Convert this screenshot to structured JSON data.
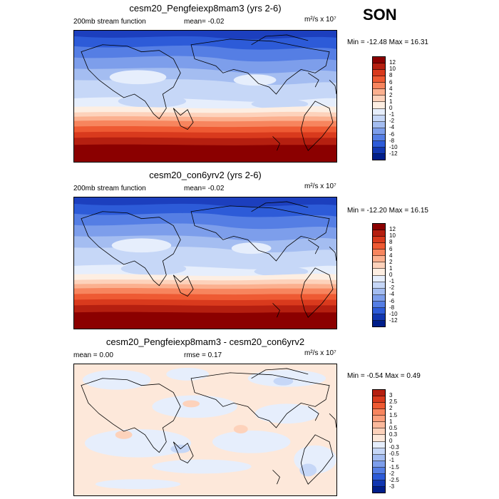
{
  "season": "SON",
  "panels": [
    {
      "title": "cesm20_Pengfeiexp8mam3 (yrs 2-6)",
      "left_text": "200mb stream function",
      "mid_text": "mean=  -0.02",
      "units": "m²/s x 10⁷",
      "minmax": "Min = -12.48 Max =  16.31",
      "colorbar": {
        "labels": [
          "12",
          "10",
          "8",
          "6",
          "4",
          "2",
          "1",
          "0",
          "-1",
          "-2",
          "-4",
          "-6",
          "-8",
          "-10",
          "-12"
        ],
        "colors": [
          "#8b0000",
          "#b51f10",
          "#d93a1d",
          "#ee5a33",
          "#f7855e",
          "#fbb08f",
          "#fdd2bb",
          "#fdeee2",
          "#e6eefc",
          "#c6d7f7",
          "#a4bdf1",
          "#7d9eeb",
          "#557ee4",
          "#2d5bd8",
          "#1136b0",
          "#001e8a"
        ]
      }
    },
    {
      "title": "cesm20_con6yrv2 (yrs 2-6)",
      "left_text": "200mb stream function",
      "mid_text": "mean=  -0.02",
      "units": "m²/s x 10⁷",
      "minmax": "Min = -12.20 Max =  16.15",
      "colorbar": {
        "labels": [
          "12",
          "10",
          "8",
          "6",
          "4",
          "2",
          "1",
          "0",
          "-1",
          "-2",
          "-4",
          "-6",
          "-8",
          "-10",
          "-12"
        ],
        "colors": [
          "#8b0000",
          "#b51f10",
          "#d93a1d",
          "#ee5a33",
          "#f7855e",
          "#fbb08f",
          "#fdd2bb",
          "#fdeee2",
          "#e6eefc",
          "#c6d7f7",
          "#a4bdf1",
          "#7d9eeb",
          "#557ee4",
          "#2d5bd8",
          "#1136b0",
          "#001e8a"
        ]
      }
    },
    {
      "title": "cesm20_Pengfeiexp8mam3 - cesm20_con6yrv2",
      "left_text": "mean =   0.00",
      "mid_text": "rmse =   0.17",
      "units": "m²/s x 10⁷",
      "minmax": "Min = -0.54 Max =  0.49",
      "colorbar": {
        "labels": [
          "3",
          "2.5",
          "2",
          "1.5",
          "1",
          "0.5",
          "0.3",
          "0",
          "-0.3",
          "-0.5",
          "-1",
          "-1.5",
          "-2",
          "-2.5",
          "-3"
        ],
        "colors": [
          "#b51f10",
          "#d93a1d",
          "#ee5a33",
          "#f7855e",
          "#fa9f7c",
          "#fbb99c",
          "#fdd2bb",
          "#fde8da",
          "#e6eefc",
          "#c6d7f7",
          "#a4bdf1",
          "#7d9eeb",
          "#557ee4",
          "#2d5bd8",
          "#1136b0",
          "#001e8a"
        ]
      }
    }
  ]
}
